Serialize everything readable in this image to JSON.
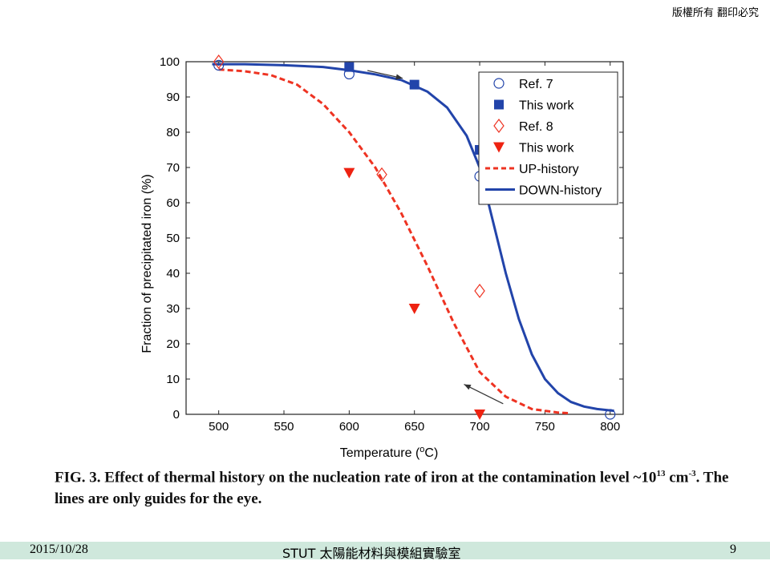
{
  "slide": {
    "copyright": "版權所有 翻印必究",
    "caption_line1_pre": "FIG. 3. Effect of thermal history on the nucleation rate of iron at the contamination level ~10",
    "caption_sup1": "13",
    "caption_line1_mid": " cm",
    "caption_sup2": "-3",
    "caption_line1_post": ".  The",
    "caption_line2": "lines are only guides for the eye.",
    "footer_date": "2015/10/28",
    "footer_lab": "STUT 太陽能材料與模組實驗室",
    "footer_page": "9"
  },
  "chart_data": {
    "type": "scatter",
    "xlabel_pre": "Temperature (",
    "xlabel_sup": "o",
    "xlabel_post": "C)",
    "ylabel": "Fraction of precipitated iron (%)",
    "xlim": [
      475,
      810
    ],
    "ylim": [
      0,
      100
    ],
    "xticks": [
      500,
      550,
      600,
      650,
      700,
      750,
      800
    ],
    "yticks": [
      0,
      10,
      20,
      30,
      40,
      50,
      60,
      70,
      80,
      90,
      100
    ],
    "legend_position": "top-right",
    "series": [
      {
        "name": "Ref. 7",
        "marker": "circle-open",
        "color": "#2244aa",
        "points": [
          [
            500,
            99
          ],
          [
            600,
            96.5
          ],
          [
            700,
            67.5
          ],
          [
            800,
            0
          ]
        ]
      },
      {
        "name": "This work",
        "marker": "square-filled",
        "color": "#2244aa",
        "points": [
          [
            600,
            98.5
          ],
          [
            650,
            93.5
          ],
          [
            700,
            75
          ]
        ]
      },
      {
        "name": "Ref. 8",
        "marker": "diamond-open",
        "color": "#ee3322",
        "points": [
          [
            500,
            100
          ],
          [
            625,
            68
          ],
          [
            700,
            35
          ]
        ]
      },
      {
        "name": "This work",
        "marker": "triangle-down-filled",
        "color": "#ee2211",
        "points": [
          [
            600,
            68.5
          ],
          [
            650,
            30
          ],
          [
            700,
            0
          ]
        ]
      },
      {
        "name": "UP-history",
        "marker": "line-dashed",
        "color": "#ee3322",
        "points": [
          [
            500,
            97.8
          ],
          [
            520,
            97.3
          ],
          [
            540,
            96.2
          ],
          [
            560,
            93.5
          ],
          [
            580,
            88
          ],
          [
            600,
            80
          ],
          [
            620,
            70
          ],
          [
            640,
            57
          ],
          [
            660,
            42
          ],
          [
            680,
            26
          ],
          [
            700,
            12
          ],
          [
            720,
            5
          ],
          [
            740,
            1.5
          ],
          [
            760,
            0.5
          ],
          [
            770,
            0.3
          ]
        ]
      },
      {
        "name": "DOWN-history",
        "marker": "line-solid",
        "color": "#2244aa",
        "points": [
          [
            495,
            99.3
          ],
          [
            520,
            99.3
          ],
          [
            550,
            99
          ],
          [
            580,
            98.5
          ],
          [
            600,
            97.6
          ],
          [
            620,
            96.4
          ],
          [
            640,
            94.8
          ],
          [
            660,
            91.5
          ],
          [
            675,
            87
          ],
          [
            690,
            79
          ],
          [
            700,
            70
          ],
          [
            710,
            55
          ],
          [
            720,
            40
          ],
          [
            730,
            27
          ],
          [
            740,
            17
          ],
          [
            750,
            10
          ],
          [
            760,
            6
          ],
          [
            770,
            3.5
          ],
          [
            780,
            2.2
          ],
          [
            790,
            1.5
          ],
          [
            803,
            1
          ]
        ]
      }
    ],
    "annotations": [
      {
        "type": "arrow",
        "from": [
          614,
          97.5
        ],
        "to": [
          641,
          95.3
        ],
        "color": "#333333"
      },
      {
        "type": "arrow",
        "from": [
          718,
          3
        ],
        "to": [
          688,
          8.5
        ],
        "color": "#333333"
      }
    ]
  }
}
